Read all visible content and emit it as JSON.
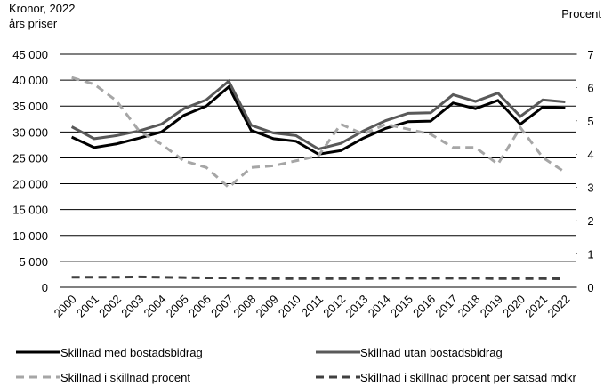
{
  "chart_data": {
    "type": "line",
    "y_label": [
      "Kronor, 2022",
      "års priser"
    ],
    "y2_label": "Procent",
    "categories": [
      "2000",
      "2001",
      "2002",
      "2003",
      "2004",
      "2005",
      "2006",
      "2007",
      "2008",
      "2009",
      "2010",
      "2011",
      "2012",
      "2013",
      "2014",
      "2015",
      "2016",
      "2017",
      "2018",
      "2019",
      "2020",
      "2021",
      "2022"
    ],
    "ylim": [
      0,
      45000
    ],
    "yticks": [
      {
        "value": 0,
        "label": "0"
      },
      {
        "value": 5000,
        "label": "5 000"
      },
      {
        "value": 10000,
        "label": "10 000"
      },
      {
        "value": 15000,
        "label": "15 000"
      },
      {
        "value": 20000,
        "label": "20 000"
      },
      {
        "value": 25000,
        "label": "25 000"
      },
      {
        "value": 30000,
        "label": "30 000"
      },
      {
        "value": 35000,
        "label": "35 000"
      },
      {
        "value": 40000,
        "label": "40 000"
      },
      {
        "value": 45000,
        "label": "45 000"
      }
    ],
    "y2lim": [
      0,
      7
    ],
    "y2ticks": [
      0,
      1,
      2,
      3,
      4,
      5,
      6,
      7
    ],
    "grid": true,
    "series": [
      {
        "name": "Skillnad med bostadsbidrag",
        "color": "#000000",
        "dash": "solid",
        "values": [
          29000,
          27000,
          27700,
          28800,
          30000,
          33200,
          35000,
          38700,
          30300,
          28700,
          28200,
          25700,
          26400,
          28800,
          30700,
          32000,
          32100,
          35600,
          34500,
          36100,
          31500,
          34800,
          34600
        ]
      },
      {
        "name": "Skillnad utan bostadsbidrag",
        "color": "#595959",
        "dash": "solid",
        "values": [
          31000,
          28700,
          29300,
          30200,
          31500,
          34500,
          36200,
          39800,
          31300,
          29800,
          29300,
          26700,
          27800,
          30200,
          32200,
          33600,
          33700,
          37200,
          35900,
          37500,
          33000,
          36200,
          35800
        ]
      },
      {
        "name": "Skillnad i skillnad procent",
        "color": "#a6a6a6",
        "dash": "dashed",
        "axis": "y2",
        "values": [
          6.3,
          6.1,
          5.6,
          4.7,
          4.3,
          3.8,
          3.6,
          3.0,
          3.6,
          3.65,
          3.8,
          3.95,
          4.9,
          4.6,
          4.9,
          4.75,
          4.6,
          4.2,
          4.2,
          3.7,
          4.8,
          3.9,
          3.45
        ]
      },
      {
        "name": "Skillnad i skillnad procent per satsad mdkr",
        "color": "#404040",
        "dash": "dashed",
        "axis": "y2",
        "values": [
          0.3,
          0.3,
          0.3,
          0.31,
          0.3,
          0.29,
          0.28,
          0.28,
          0.27,
          0.26,
          0.26,
          0.26,
          0.26,
          0.26,
          0.27,
          0.27,
          0.27,
          0.27,
          0.27,
          0.26,
          0.26,
          0.26,
          0.25
        ]
      }
    ]
  }
}
